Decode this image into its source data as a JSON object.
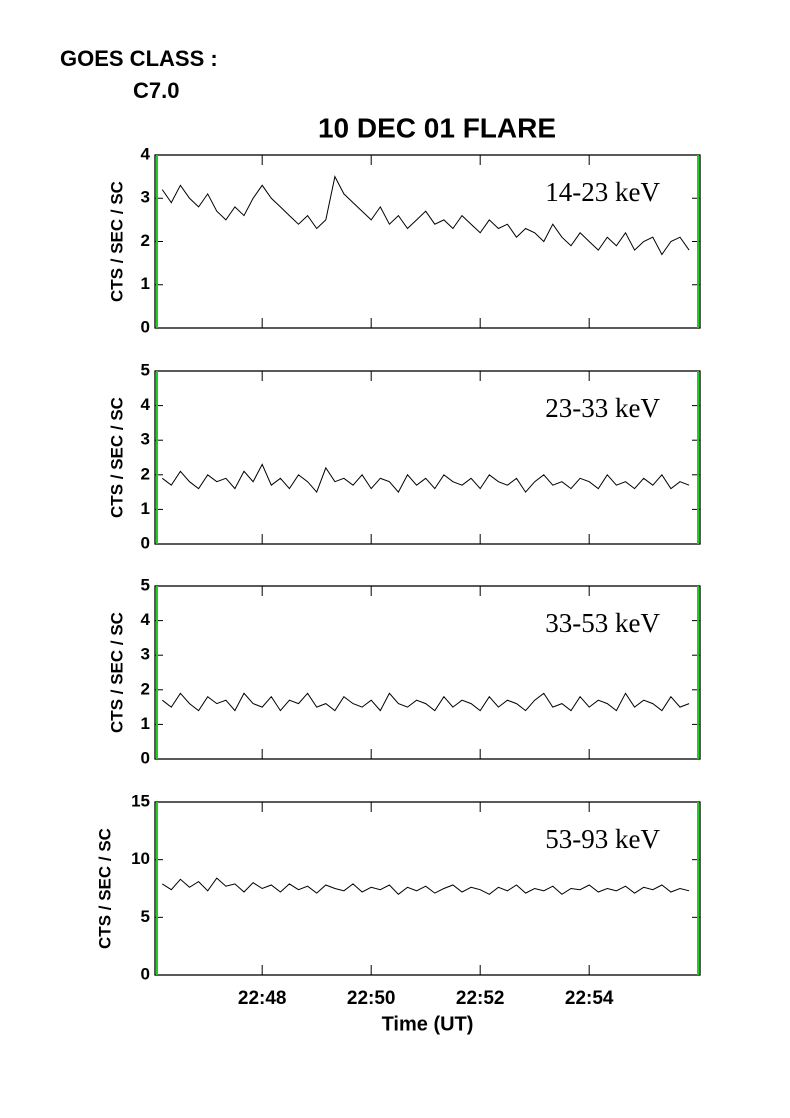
{
  "header": {
    "goes_class_label": "GOES CLASS :",
    "goes_class": "C7.0"
  },
  "chart_data": [
    {
      "type": "line",
      "title": "10 DEC 01 FLARE",
      "annotation": "14-23 keV",
      "ylabel": "CTS / SEC / SC",
      "x": [
        "22:46:10",
        "22:46:20",
        "22:46:30",
        "22:46:40",
        "22:46:50",
        "22:47:00",
        "22:47:10",
        "22:47:20",
        "22:47:30",
        "22:47:40",
        "22:47:50",
        "22:48:00",
        "22:48:10",
        "22:48:20",
        "22:48:30",
        "22:48:40",
        "22:48:50",
        "22:49:00",
        "22:49:10",
        "22:49:20",
        "22:49:30",
        "22:49:40",
        "22:49:50",
        "22:50:00",
        "22:50:10",
        "22:50:20",
        "22:50:30",
        "22:50:40",
        "22:50:50",
        "22:51:00",
        "22:51:10",
        "22:51:20",
        "22:51:30",
        "22:51:40",
        "22:51:50",
        "22:52:00",
        "22:52:10",
        "22:52:20",
        "22:52:30",
        "22:52:40",
        "22:52:50",
        "22:53:00",
        "22:53:10",
        "22:53:20",
        "22:53:30",
        "22:53:40",
        "22:53:50",
        "22:54:00",
        "22:54:10",
        "22:54:20",
        "22:54:30",
        "22:54:40",
        "22:54:50",
        "22:55:00",
        "22:55:10",
        "22:55:20",
        "22:55:30",
        "22:55:40",
        "22:55:50"
      ],
      "values": [
        3.2,
        2.9,
        3.3,
        3.0,
        2.8,
        3.1,
        2.7,
        2.5,
        2.8,
        2.6,
        3.0,
        3.3,
        3.0,
        2.8,
        2.6,
        2.4,
        2.6,
        2.3,
        2.5,
        3.5,
        3.1,
        2.9,
        2.7,
        2.5,
        2.8,
        2.4,
        2.6,
        2.3,
        2.5,
        2.7,
        2.4,
        2.5,
        2.3,
        2.6,
        2.4,
        2.2,
        2.5,
        2.3,
        2.4,
        2.1,
        2.3,
        2.2,
        2.0,
        2.4,
        2.1,
        1.9,
        2.2,
        2.0,
        1.8,
        2.1,
        1.9,
        2.2,
        1.8,
        2.0,
        2.1,
        1.7,
        2.0,
        2.1,
        1.8
      ],
      "color": "#000000",
      "xlim": [
        "22:46:02",
        "22:56:02"
      ],
      "ylim": [
        0,
        4
      ],
      "yticks": [
        0,
        1,
        2,
        3,
        4
      ]
    },
    {
      "type": "line",
      "annotation": "23-33 keV",
      "ylabel": "CTS / SEC / SC",
      "x": [
        "22:46:10",
        "22:46:20",
        "22:46:30",
        "22:46:40",
        "22:46:50",
        "22:47:00",
        "22:47:10",
        "22:47:20",
        "22:47:30",
        "22:47:40",
        "22:47:50",
        "22:48:00",
        "22:48:10",
        "22:48:20",
        "22:48:30",
        "22:48:40",
        "22:48:50",
        "22:49:00",
        "22:49:10",
        "22:49:20",
        "22:49:30",
        "22:49:40",
        "22:49:50",
        "22:50:00",
        "22:50:10",
        "22:50:20",
        "22:50:30",
        "22:50:40",
        "22:50:50",
        "22:51:00",
        "22:51:10",
        "22:51:20",
        "22:51:30",
        "22:51:40",
        "22:51:50",
        "22:52:00",
        "22:52:10",
        "22:52:20",
        "22:52:30",
        "22:52:40",
        "22:52:50",
        "22:53:00",
        "22:53:10",
        "22:53:20",
        "22:53:30",
        "22:53:40",
        "22:53:50",
        "22:54:00",
        "22:54:10",
        "22:54:20",
        "22:54:30",
        "22:54:40",
        "22:54:50",
        "22:55:00",
        "22:55:10",
        "22:55:20",
        "22:55:30",
        "22:55:40",
        "22:55:50"
      ],
      "values": [
        1.9,
        1.7,
        2.1,
        1.8,
        1.6,
        2.0,
        1.8,
        1.9,
        1.6,
        2.1,
        1.8,
        2.3,
        1.7,
        1.9,
        1.6,
        2.0,
        1.8,
        1.5,
        2.2,
        1.8,
        1.9,
        1.7,
        2.0,
        1.6,
        1.9,
        1.8,
        1.5,
        2.0,
        1.7,
        1.9,
        1.6,
        2.0,
        1.8,
        1.7,
        1.9,
        1.6,
        2.0,
        1.8,
        1.7,
        1.9,
        1.5,
        1.8,
        2.0,
        1.7,
        1.8,
        1.6,
        1.9,
        1.8,
        1.6,
        2.0,
        1.7,
        1.8,
        1.6,
        1.9,
        1.7,
        2.0,
        1.6,
        1.8,
        1.7
      ],
      "color": "#000000",
      "xlim": [
        "22:46:02",
        "22:56:02"
      ],
      "ylim": [
        0,
        5
      ],
      "yticks": [
        0,
        1,
        2,
        3,
        4,
        5
      ]
    },
    {
      "type": "line",
      "annotation": "33-53 keV",
      "ylabel": "CTS / SEC / SC",
      "x": [
        "22:46:10",
        "22:46:20",
        "22:46:30",
        "22:46:40",
        "22:46:50",
        "22:47:00",
        "22:47:10",
        "22:47:20",
        "22:47:30",
        "22:47:40",
        "22:47:50",
        "22:48:00",
        "22:48:10",
        "22:48:20",
        "22:48:30",
        "22:48:40",
        "22:48:50",
        "22:49:00",
        "22:49:10",
        "22:49:20",
        "22:49:30",
        "22:49:40",
        "22:49:50",
        "22:50:00",
        "22:50:10",
        "22:50:20",
        "22:50:30",
        "22:50:40",
        "22:50:50",
        "22:51:00",
        "22:51:10",
        "22:51:20",
        "22:51:30",
        "22:51:40",
        "22:51:50",
        "22:52:00",
        "22:52:10",
        "22:52:20",
        "22:52:30",
        "22:52:40",
        "22:52:50",
        "22:53:00",
        "22:53:10",
        "22:53:20",
        "22:53:30",
        "22:53:40",
        "22:53:50",
        "22:54:00",
        "22:54:10",
        "22:54:20",
        "22:54:30",
        "22:54:40",
        "22:54:50",
        "22:55:00",
        "22:55:10",
        "22:55:20",
        "22:55:30",
        "22:55:40",
        "22:55:50"
      ],
      "values": [
        1.7,
        1.5,
        1.9,
        1.6,
        1.4,
        1.8,
        1.6,
        1.7,
        1.4,
        1.9,
        1.6,
        1.5,
        1.8,
        1.4,
        1.7,
        1.6,
        1.9,
        1.5,
        1.6,
        1.4,
        1.8,
        1.6,
        1.5,
        1.7,
        1.4,
        1.9,
        1.6,
        1.5,
        1.7,
        1.6,
        1.4,
        1.8,
        1.5,
        1.7,
        1.6,
        1.4,
        1.8,
        1.5,
        1.7,
        1.6,
        1.4,
        1.7,
        1.9,
        1.5,
        1.6,
        1.4,
        1.8,
        1.5,
        1.7,
        1.6,
        1.4,
        1.9,
        1.5,
        1.7,
        1.6,
        1.4,
        1.8,
        1.5,
        1.6
      ],
      "color": "#000000",
      "xlim": [
        "22:46:02",
        "22:56:02"
      ],
      "ylim": [
        0,
        5
      ],
      "yticks": [
        0,
        1,
        2,
        3,
        4,
        5
      ]
    },
    {
      "type": "line",
      "annotation": "53-93 keV",
      "ylabel": "CTS / SEC / SC",
      "xlabel": "Time (UT)",
      "x": [
        "22:46:10",
        "22:46:20",
        "22:46:30",
        "22:46:40",
        "22:46:50",
        "22:47:00",
        "22:47:10",
        "22:47:20",
        "22:47:30",
        "22:47:40",
        "22:47:50",
        "22:48:00",
        "22:48:10",
        "22:48:20",
        "22:48:30",
        "22:48:40",
        "22:48:50",
        "22:49:00",
        "22:49:10",
        "22:49:20",
        "22:49:30",
        "22:49:40",
        "22:49:50",
        "22:50:00",
        "22:50:10",
        "22:50:20",
        "22:50:30",
        "22:50:40",
        "22:50:50",
        "22:51:00",
        "22:51:10",
        "22:51:20",
        "22:51:30",
        "22:51:40",
        "22:51:50",
        "22:52:00",
        "22:52:10",
        "22:52:20",
        "22:52:30",
        "22:52:40",
        "22:52:50",
        "22:53:00",
        "22:53:10",
        "22:53:20",
        "22:53:30",
        "22:53:40",
        "22:53:50",
        "22:54:00",
        "22:54:10",
        "22:54:20",
        "22:54:30",
        "22:54:40",
        "22:54:50",
        "22:55:00",
        "22:55:10",
        "22:55:20",
        "22:55:30",
        "22:55:40",
        "22:55:50"
      ],
      "values": [
        7.9,
        7.4,
        8.3,
        7.6,
        8.1,
        7.3,
        8.4,
        7.7,
        7.9,
        7.2,
        8.0,
        7.5,
        7.8,
        7.2,
        7.9,
        7.4,
        7.7,
        7.1,
        7.8,
        7.5,
        7.3,
        7.9,
        7.2,
        7.6,
        7.4,
        7.8,
        7.0,
        7.6,
        7.3,
        7.7,
        7.1,
        7.5,
        7.8,
        7.2,
        7.6,
        7.4,
        7.0,
        7.6,
        7.3,
        7.8,
        7.1,
        7.5,
        7.3,
        7.7,
        7.0,
        7.5,
        7.4,
        7.8,
        7.2,
        7.5,
        7.3,
        7.7,
        7.1,
        7.6,
        7.4,
        7.8,
        7.2,
        7.5,
        7.3
      ],
      "color": "#000000",
      "xlim": [
        "22:46:02",
        "22:56:02"
      ],
      "ylim": [
        0,
        15
      ],
      "yticks": [
        0,
        5,
        10,
        15
      ],
      "xticks": [
        "22:48",
        "22:50",
        "22:52",
        "22:54"
      ]
    }
  ]
}
